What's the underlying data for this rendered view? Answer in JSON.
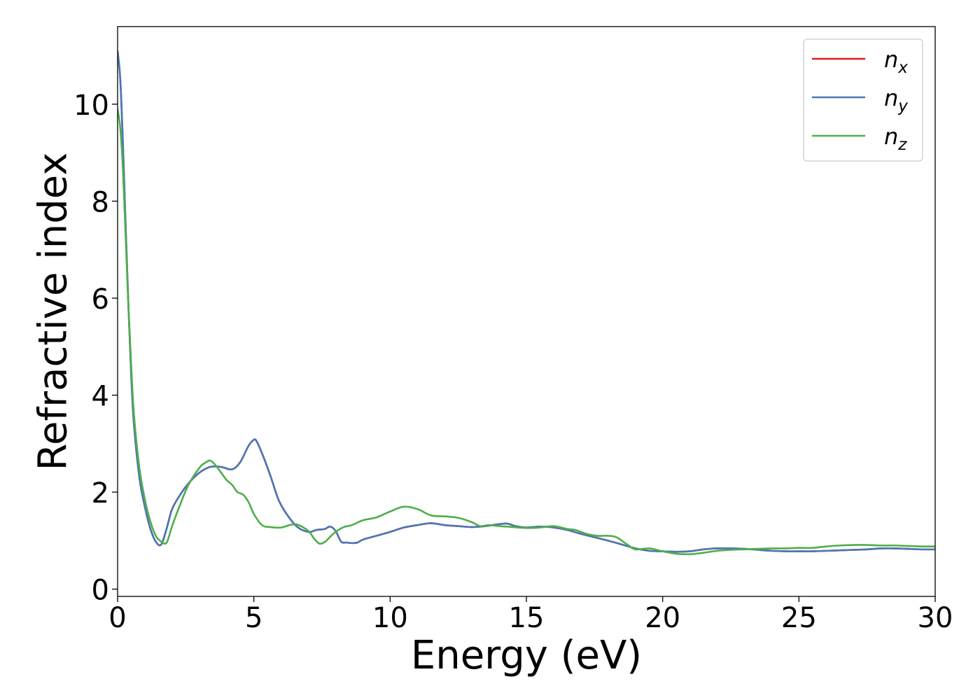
{
  "chart_data": {
    "type": "line",
    "title": "",
    "xlabel": "Energy (eV)",
    "ylabel": "Refractive index",
    "xlim": [
      0,
      30
    ],
    "ylim": [
      -0.15,
      11.6
    ],
    "x_ticks": [
      0,
      5,
      10,
      15,
      20,
      25,
      30
    ],
    "y_ticks": [
      0,
      2,
      4,
      6,
      8,
      10
    ],
    "grid": false,
    "legend_position": "top-right",
    "series": [
      {
        "name": "n_x",
        "legend_base": "n",
        "legend_sub": "x",
        "color": "#e41a1c",
        "x": [
          0,
          0.1,
          0.2,
          0.3,
          0.4,
          0.5,
          0.6,
          0.8,
          1.0,
          1.2,
          1.4,
          1.6,
          1.8,
          2.0,
          2.3,
          2.6,
          3.0,
          3.4,
          3.8,
          4.2,
          4.5,
          4.8,
          5.0,
          5.1,
          5.3,
          5.6,
          5.9,
          6.2,
          6.6,
          7.0,
          7.3,
          7.6,
          7.8,
          8.0,
          8.2,
          8.4,
          8.6,
          8.8,
          9.0,
          9.5,
          10.0,
          10.5,
          11.0,
          11.5,
          12.0,
          12.5,
          13.0,
          13.5,
          14.0,
          14.3,
          14.6,
          15.0,
          15.5,
          16.0,
          16.5,
          17.0,
          17.5,
          18.0,
          18.5,
          19.0,
          19.5,
          20.0,
          20.5,
          21.0,
          21.5,
          22.0,
          22.5,
          23.0,
          23.5,
          24.0,
          24.5,
          25.0,
          25.5,
          26.0,
          26.5,
          27.0,
          27.5,
          28.0,
          28.5,
          29.0,
          29.5,
          30.0
        ],
        "values": [
          11.1,
          10.5,
          9.1,
          7.4,
          5.8,
          4.4,
          3.4,
          2.3,
          1.7,
          1.25,
          0.98,
          0.92,
          1.25,
          1.65,
          1.95,
          2.18,
          2.4,
          2.52,
          2.52,
          2.47,
          2.62,
          2.95,
          3.08,
          3.05,
          2.8,
          2.35,
          1.85,
          1.55,
          1.28,
          1.18,
          1.22,
          1.24,
          1.29,
          1.2,
          0.98,
          0.96,
          0.95,
          0.96,
          1.02,
          1.1,
          1.18,
          1.27,
          1.32,
          1.36,
          1.32,
          1.3,
          1.28,
          1.3,
          1.34,
          1.35,
          1.3,
          1.27,
          1.29,
          1.27,
          1.22,
          1.14,
          1.07,
          1.0,
          0.92,
          0.84,
          0.79,
          0.78,
          0.77,
          0.78,
          0.82,
          0.84,
          0.84,
          0.83,
          0.81,
          0.79,
          0.78,
          0.78,
          0.78,
          0.79,
          0.8,
          0.81,
          0.82,
          0.84,
          0.84,
          0.83,
          0.82,
          0.82
        ]
      },
      {
        "name": "n_y",
        "legend_base": "n",
        "legend_sub": "y",
        "color": "#4a78b4",
        "x": [
          0,
          0.1,
          0.2,
          0.3,
          0.4,
          0.5,
          0.6,
          0.8,
          1.0,
          1.2,
          1.4,
          1.6,
          1.8,
          2.0,
          2.3,
          2.6,
          3.0,
          3.4,
          3.8,
          4.2,
          4.5,
          4.8,
          5.0,
          5.1,
          5.3,
          5.6,
          5.9,
          6.2,
          6.6,
          7.0,
          7.3,
          7.6,
          7.8,
          8.0,
          8.2,
          8.4,
          8.6,
          8.8,
          9.0,
          9.5,
          10.0,
          10.5,
          11.0,
          11.5,
          12.0,
          12.5,
          13.0,
          13.5,
          14.0,
          14.3,
          14.6,
          15.0,
          15.5,
          16.0,
          16.5,
          17.0,
          17.5,
          18.0,
          18.5,
          19.0,
          19.5,
          20.0,
          20.5,
          21.0,
          21.5,
          22.0,
          22.5,
          23.0,
          23.5,
          24.0,
          24.5,
          25.0,
          25.5,
          26.0,
          26.5,
          27.0,
          27.5,
          28.0,
          28.5,
          29.0,
          29.5,
          30.0
        ],
        "values": [
          11.1,
          10.5,
          9.1,
          7.4,
          5.8,
          4.4,
          3.4,
          2.3,
          1.7,
          1.25,
          0.98,
          0.92,
          1.25,
          1.65,
          1.95,
          2.18,
          2.4,
          2.52,
          2.52,
          2.47,
          2.62,
          2.95,
          3.08,
          3.05,
          2.8,
          2.35,
          1.85,
          1.55,
          1.28,
          1.18,
          1.22,
          1.24,
          1.29,
          1.2,
          0.98,
          0.96,
          0.95,
          0.96,
          1.02,
          1.1,
          1.18,
          1.27,
          1.32,
          1.36,
          1.32,
          1.3,
          1.28,
          1.3,
          1.34,
          1.35,
          1.3,
          1.27,
          1.29,
          1.27,
          1.22,
          1.14,
          1.07,
          1.0,
          0.92,
          0.84,
          0.79,
          0.78,
          0.77,
          0.78,
          0.82,
          0.84,
          0.84,
          0.83,
          0.81,
          0.79,
          0.78,
          0.78,
          0.78,
          0.79,
          0.8,
          0.81,
          0.82,
          0.84,
          0.84,
          0.83,
          0.82,
          0.82
        ]
      },
      {
        "name": "n_z",
        "legend_base": "n",
        "legend_sub": "z",
        "color": "#4daf4a",
        "x": [
          0,
          0.1,
          0.2,
          0.3,
          0.4,
          0.5,
          0.6,
          0.8,
          1.0,
          1.2,
          1.4,
          1.6,
          1.8,
          2.0,
          2.3,
          2.6,
          3.0,
          3.2,
          3.4,
          3.6,
          3.8,
          4.0,
          4.2,
          4.4,
          4.6,
          4.8,
          5.0,
          5.3,
          5.6,
          6.0,
          6.3,
          6.6,
          7.0,
          7.2,
          7.4,
          7.6,
          7.8,
          8.0,
          8.3,
          8.6,
          9.0,
          9.5,
          10.0,
          10.5,
          11.0,
          11.5,
          12.0,
          12.5,
          13.0,
          13.3,
          13.6,
          14.0,
          14.5,
          15.0,
          15.5,
          16.0,
          16.5,
          16.8,
          17.2,
          17.6,
          18.0,
          18.3,
          18.7,
          19.0,
          19.5,
          20.0,
          20.5,
          21.0,
          21.5,
          22.0,
          22.5,
          23.0,
          23.5,
          24.0,
          24.5,
          25.0,
          25.5,
          26.0,
          26.5,
          27.0,
          27.5,
          28.0,
          28.5,
          29.0,
          29.5,
          30.0
        ],
        "values": [
          9.9,
          9.5,
          8.6,
          7.2,
          5.8,
          4.6,
          3.6,
          2.5,
          1.85,
          1.4,
          1.1,
          0.98,
          0.96,
          1.3,
          1.75,
          2.15,
          2.5,
          2.6,
          2.65,
          2.55,
          2.4,
          2.25,
          2.15,
          2.0,
          1.95,
          1.8,
          1.55,
          1.32,
          1.28,
          1.27,
          1.32,
          1.33,
          1.2,
          1.05,
          0.94,
          0.97,
          1.08,
          1.18,
          1.28,
          1.32,
          1.42,
          1.48,
          1.6,
          1.7,
          1.65,
          1.52,
          1.5,
          1.47,
          1.38,
          1.3,
          1.32,
          1.3,
          1.28,
          1.26,
          1.27,
          1.3,
          1.24,
          1.22,
          1.14,
          1.1,
          1.1,
          1.07,
          0.92,
          0.82,
          0.84,
          0.78,
          0.73,
          0.72,
          0.75,
          0.79,
          0.81,
          0.82,
          0.83,
          0.84,
          0.84,
          0.85,
          0.85,
          0.88,
          0.9,
          0.91,
          0.91,
          0.9,
          0.9,
          0.89,
          0.88,
          0.88
        ]
      }
    ]
  }
}
